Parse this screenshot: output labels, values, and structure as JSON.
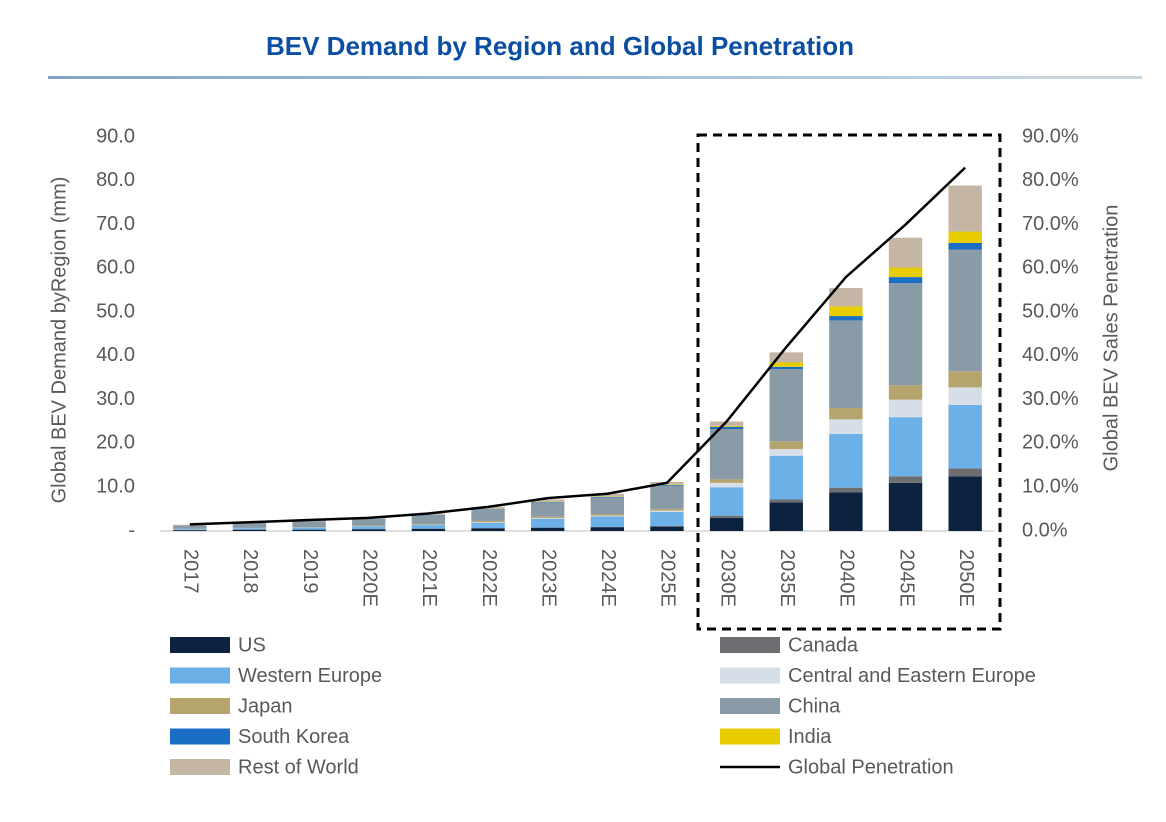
{
  "chart_data": {
    "type": "bar",
    "stacked": true,
    "title": "BEV Demand by Region and Global Penetration",
    "y_label": "Global BEV Demand byRegion (mm)",
    "y2_label": "Global BEV Sales Penetration",
    "categories": [
      "2017",
      "2018",
      "2019",
      "2020E",
      "2021E",
      "2022E",
      "2023E",
      "2024E",
      "2025E",
      "2030E",
      "2035E",
      "2040E",
      "2045E",
      "2050E"
    ],
    "ylim": [
      0,
      90
    ],
    "yticks": [
      {
        "value": 0,
        "label": "-"
      },
      {
        "value": 10,
        "label": "10.0"
      },
      {
        "value": 20,
        "label": "20.0"
      },
      {
        "value": 30,
        "label": "30.0"
      },
      {
        "value": 40,
        "label": "40.0"
      },
      {
        "value": 50,
        "label": "50.0"
      },
      {
        "value": 60,
        "label": "60.0"
      },
      {
        "value": 70,
        "label": "70.0"
      },
      {
        "value": 80,
        "label": "80.0"
      },
      {
        "value": 90,
        "label": "90.0"
      }
    ],
    "y2lim": [
      0,
      90
    ],
    "y2ticks": [
      {
        "value": 0,
        "label": "0.0%"
      },
      {
        "value": 10,
        "label": "10.0%"
      },
      {
        "value": 20,
        "label": "20.0%"
      },
      {
        "value": 30,
        "label": "30.0%"
      },
      {
        "value": 40,
        "label": "40.0%"
      },
      {
        "value": 50,
        "label": "50.0%"
      },
      {
        "value": 60,
        "label": "60.0%"
      },
      {
        "value": 70,
        "label": "70.0%"
      },
      {
        "value": 80,
        "label": "80.0%"
      },
      {
        "value": 90,
        "label": "90.0%"
      }
    ],
    "series": [
      {
        "name": "US",
        "color": "#0c2340",
        "values": [
          0.2,
          0.3,
          0.3,
          0.4,
          0.5,
          0.6,
          0.7,
          0.8,
          1.0,
          3.0,
          6.5,
          8.8,
          11,
          12.5
        ]
      },
      {
        "name": "Canada",
        "color": "#6d6e71",
        "values": [
          0.02,
          0.03,
          0.04,
          0.05,
          0.06,
          0.08,
          0.1,
          0.12,
          0.15,
          0.5,
          0.7,
          1.1,
          1.5,
          1.8
        ]
      },
      {
        "name": "Western Europe",
        "color": "#6cb0e8",
        "values": [
          0.2,
          0.3,
          0.45,
          0.6,
          0.8,
          1.2,
          2.0,
          2.4,
          3.2,
          6.5,
          10,
          12.3,
          13.5,
          14.5
        ]
      },
      {
        "name": "Central and Eastern Europe",
        "color": "#d6dfe8",
        "values": [
          0.02,
          0.03,
          0.04,
          0.05,
          0.08,
          0.12,
          0.15,
          0.2,
          0.3,
          1.0,
          1.5,
          3.3,
          4,
          4
        ]
      },
      {
        "name": "Japan",
        "color": "#b5a46c",
        "values": [
          0.05,
          0.05,
          0.06,
          0.1,
          0.15,
          0.3,
          0.3,
          0.35,
          0.4,
          0.8,
          1.8,
          2.6,
          3.3,
          3.7
        ]
      },
      {
        "name": "China",
        "color": "#8a9ba8",
        "values": [
          0.8,
          1.1,
          1.3,
          1.5,
          2.0,
          2.6,
          3.3,
          3.8,
          5.3,
          11.5,
          16.5,
          20,
          23.3,
          27.8
        ]
      },
      {
        "name": "South Korea",
        "color": "#1a6fc4",
        "values": [
          0.02,
          0.03,
          0.04,
          0.05,
          0.07,
          0.1,
          0.12,
          0.15,
          0.2,
          0.5,
          0.5,
          1.0,
          1.4,
          1.5
        ]
      },
      {
        "name": "India",
        "color": "#e6cc00",
        "values": [
          0.01,
          0.01,
          0.02,
          0.02,
          0.03,
          0.05,
          0.08,
          0.1,
          0.15,
          0.2,
          1.0,
          2.2,
          2.2,
          2.6
        ]
      },
      {
        "name": "Rest of World",
        "color": "#c4b5a5",
        "values": [
          0.1,
          0.15,
          0.2,
          0.25,
          0.3,
          0.45,
          0.45,
          0.6,
          0.5,
          1.0,
          2.3,
          4.2,
          6.8,
          10.5
        ]
      },
      {
        "name": "Global Penetration",
        "color": "#000000",
        "axis": "y2",
        "values": [
          1.5,
          2,
          2.5,
          3,
          4,
          5.5,
          7.5,
          8.5,
          11,
          25,
          42,
          58,
          70,
          83
        ]
      }
    ]
  }
}
